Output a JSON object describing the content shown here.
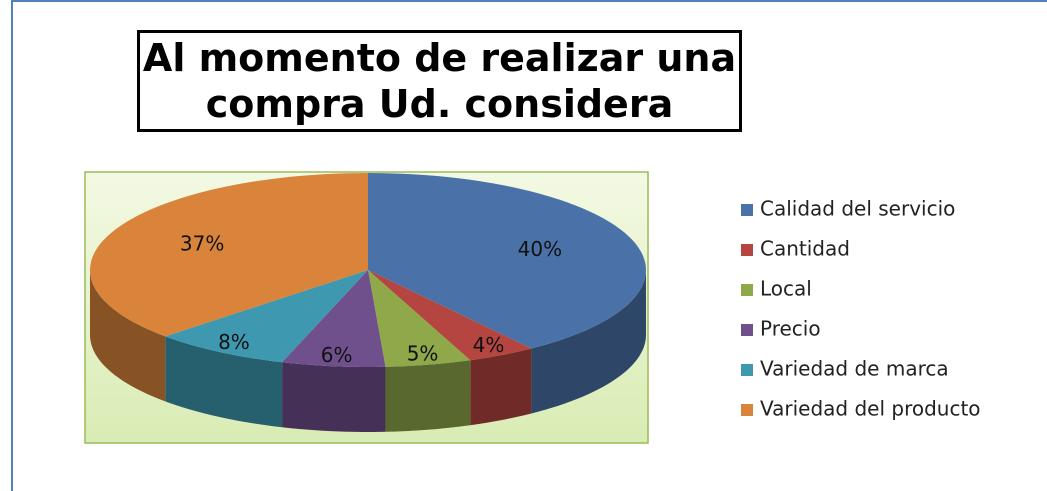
{
  "chart_data": {
    "type": "pie",
    "title": "Al momento de realizar una compra Ud. considera",
    "categories": [
      "Calidad del servicio",
      "Cantidad",
      "Local",
      "Precio",
      "Variedad de marca",
      "Variedad del producto"
    ],
    "values": [
      40,
      4,
      5,
      6,
      8,
      37
    ],
    "value_labels": [
      "40%",
      "4%",
      "5%",
      "6%",
      "8%",
      "37%"
    ],
    "colors": [
      "#4a72a8",
      "#b44540",
      "#8ea84a",
      "#6f4f8c",
      "#3e99b0",
      "#d9843a"
    ],
    "legend": "right"
  }
}
